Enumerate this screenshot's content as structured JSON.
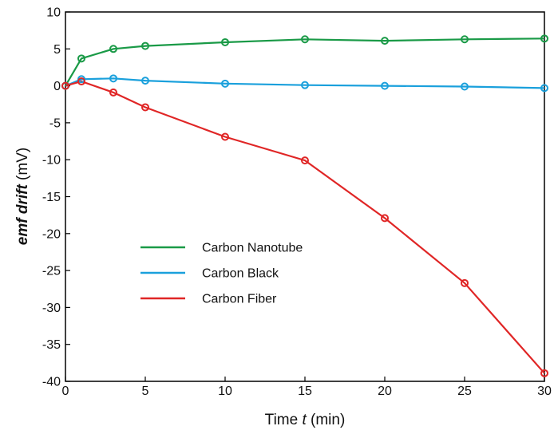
{
  "chart_data": {
    "type": "line",
    "xlabel_parts": [
      "Time ",
      "t",
      " (min)"
    ],
    "ylabel_parts": [
      "emf drift",
      " (mV)"
    ],
    "xlim": [
      0,
      30
    ],
    "ylim": [
      -40,
      10
    ],
    "xticks": [
      0,
      5,
      10,
      15,
      20,
      25,
      30
    ],
    "yticks": [
      10,
      5,
      0,
      -5,
      -10,
      -15,
      -20,
      -25,
      -30,
      -35,
      -40
    ],
    "grid": false,
    "legend_position": "lower-left",
    "series": [
      {
        "name": "Carbon Nanotube",
        "color": "#1a9a47",
        "x": [
          0,
          1,
          3,
          5,
          10,
          15,
          20,
          25,
          30
        ],
        "y": [
          0,
          3.7,
          5.0,
          5.4,
          5.9,
          6.3,
          6.1,
          6.3,
          6.4
        ]
      },
      {
        "name": "Carbon Black",
        "color": "#1aa0dc",
        "x": [
          0,
          1,
          3,
          5,
          10,
          15,
          20,
          25,
          30
        ],
        "y": [
          0,
          0.9,
          1.0,
          0.7,
          0.3,
          0.1,
          0.0,
          -0.1,
          -0.3
        ]
      },
      {
        "name": "Carbon Fiber",
        "color": "#e02626",
        "x": [
          0,
          1,
          3,
          5,
          10,
          15,
          20,
          25,
          30
        ],
        "y": [
          0,
          0.6,
          -0.9,
          -2.9,
          -6.9,
          -10.1,
          -17.9,
          -26.7,
          -38.9
        ]
      }
    ]
  }
}
